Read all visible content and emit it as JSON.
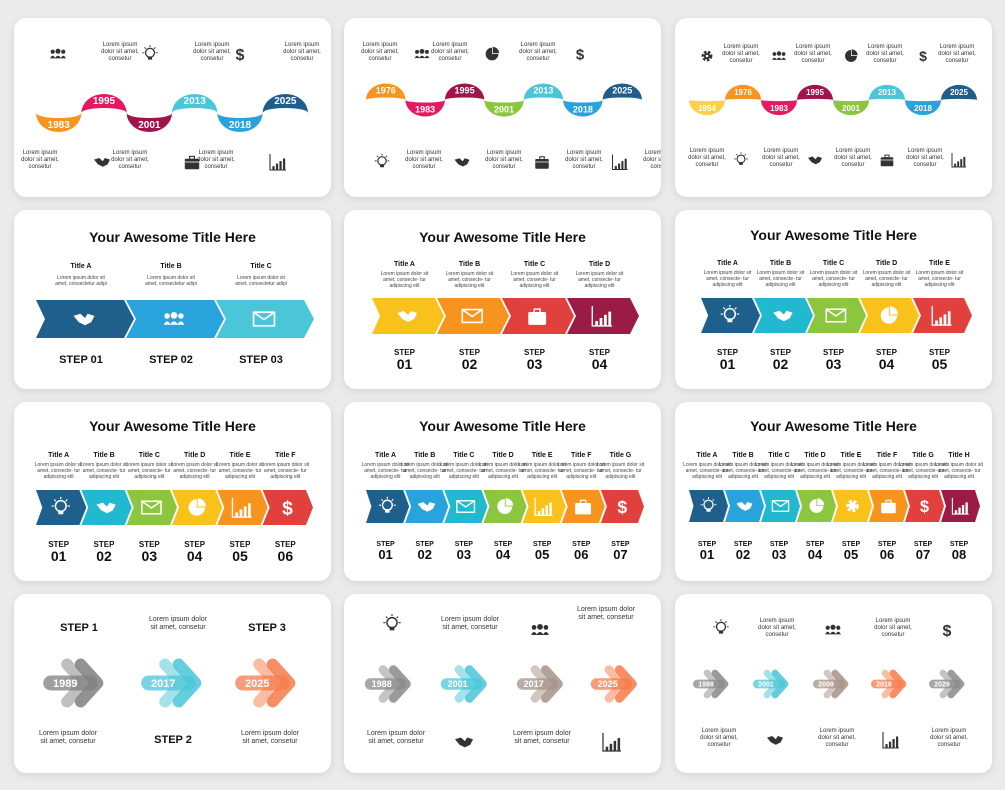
{
  "lorem_long": "Lorem ipsum dolor sit amet, consetur",
  "lorem_short": "Lorem ipsum dolor sit amet, consetur",
  "lorem_sub": "Lorem ipsum dolor sit amet, consectetur adipi",
  "lorem_sub2": "Lorem ipsum dolor sit amet, consecte- tur adipiscing elit",
  "slide_title": "Your Awesome Title Here",
  "step_word": "STEP",
  "colors": {
    "orange": "#f7941d",
    "magenta": "#e5195e",
    "crimson": "#a0144c",
    "teal": "#4ac6d8",
    "sky": "#29a3dc",
    "navy": "#1f5d8c",
    "green": "#8cc63f",
    "yellow": "#f9c21b",
    "red": "#e2403c",
    "darkblue": "#1f5f8b",
    "cyan": "#21b9cf",
    "gold": "#f6a81a",
    "maroon": "#9a1b46",
    "lightred": "#d94b3d",
    "lightyellow": "#fcd04b"
  },
  "slide1": {
    "years": [
      "1983",
      "1995",
      "2001",
      "2013",
      "2018",
      "2025"
    ],
    "icons_top": [
      "people-icon",
      "bulb-icon",
      "dollar-icon"
    ],
    "icons_bottom": [
      "handshake-icon",
      "briefcase-icon",
      "chart-icon"
    ]
  },
  "slide2": {
    "years": [
      "1976",
      "1983",
      "1995",
      "2001",
      "2013",
      "2018",
      "2025"
    ],
    "icons_top": [
      "people-icon",
      "pie-icon",
      "dollar-icon"
    ],
    "icons_bottom": [
      "bulb-icon",
      "handshake-icon",
      "briefcase-icon",
      "chart-icon"
    ]
  },
  "slide3": {
    "years": [
      "1954",
      "1976",
      "1983",
      "1995",
      "2001",
      "2013",
      "2018",
      "2025"
    ],
    "icons_top": [
      "gear-icon",
      "people-icon",
      "pie-icon",
      "dollar-icon"
    ],
    "icons_bottom": [
      "bulb-icon",
      "handshake-icon",
      "briefcase-icon",
      "chart-icon"
    ]
  },
  "slide4": {
    "titles": [
      "Title A",
      "Title B",
      "Title C"
    ],
    "steps": [
      "STEP 01",
      "STEP 02",
      "STEP 03"
    ],
    "icons": [
      "handshake-icon",
      "people-icon",
      "mail-icon"
    ]
  },
  "slide5": {
    "titles": [
      "Title A",
      "Title B",
      "Title C",
      "Title D"
    ],
    "step_nums": [
      "01",
      "02",
      "03",
      "04"
    ],
    "icons": [
      "handshake-icon",
      "mail-icon",
      "briefcase-icon",
      "chart-icon"
    ]
  },
  "slide6": {
    "titles": [
      "Title A",
      "Title B",
      "Title C",
      "Title D",
      "Title E"
    ],
    "step_nums": [
      "01",
      "02",
      "03",
      "04",
      "05"
    ],
    "icons": [
      "bulb-icon",
      "handshake-icon",
      "mail-icon",
      "pie-icon",
      "chart-icon"
    ]
  },
  "slide7": {
    "titles": [
      "Title A",
      "Title B",
      "Title C",
      "Title D",
      "Title E",
      "Title F"
    ],
    "step_nums": [
      "01",
      "02",
      "03",
      "04",
      "05",
      "06"
    ],
    "icons": [
      "bulb-icon",
      "handshake-icon",
      "mail-icon",
      "pie-icon",
      "chart-icon",
      "dollar-icon"
    ]
  },
  "slide8": {
    "titles": [
      "Title A",
      "Title B",
      "Title C",
      "Title D",
      "Title E",
      "Title F",
      "Title G"
    ],
    "step_nums": [
      "01",
      "02",
      "03",
      "04",
      "05",
      "06",
      "07"
    ],
    "icons": [
      "bulb-icon",
      "handshake-icon",
      "mail-icon",
      "pie-icon",
      "chart-icon",
      "briefcase-icon",
      "dollar-icon"
    ]
  },
  "slide9": {
    "titles": [
      "Title A",
      "Title B",
      "Title C",
      "Title D",
      "Title E",
      "Title F",
      "Title G",
      "Title H"
    ],
    "step_nums": [
      "01",
      "02",
      "03",
      "04",
      "05",
      "06",
      "07",
      "08"
    ],
    "icons": [
      "bulb-icon",
      "handshake-icon",
      "mail-icon",
      "pie-icon",
      "gear-icon",
      "briefcase-icon",
      "dollar-icon",
      "chart-icon"
    ]
  },
  "slide10": {
    "years": [
      "1989",
      "2017",
      "2025"
    ],
    "step_top_1": "STEP 1",
    "step_top_3": "STEP 3",
    "step_bottom_2": "STEP 2"
  },
  "slide11": {
    "years": [
      "1988",
      "2001",
      "2017",
      "2025"
    ],
    "icons_top": [
      "bulb-icon",
      "people-icon"
    ],
    "icons_bottom": [
      "handshake-icon",
      "chart-icon"
    ]
  },
  "slide12": {
    "years": [
      "1988",
      "2001",
      "2009",
      "2018",
      "2029"
    ],
    "icons_top": [
      "bulb-icon",
      "people-icon",
      "dollar-icon"
    ],
    "icons_bottom": [
      "handshake-icon",
      "chart-icon"
    ]
  }
}
